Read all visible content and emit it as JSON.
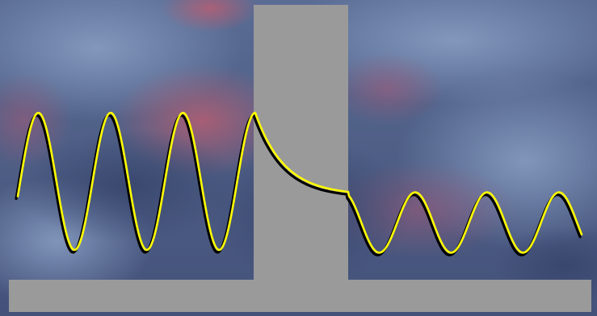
{
  "diagram": {
    "background": {
      "description_colors": {
        "base": "#50618a",
        "cloud_light": "#7f95bd",
        "cloud_dark": "#3b4a70",
        "warm_glow": "#b35a6e"
      }
    },
    "barrier": {
      "color": "#9a9a9a"
    },
    "wave": {
      "color": "#ffff00",
      "shadow_color": "#000000"
    },
    "waves": {
      "incident_amplitude_relative": 1.0,
      "transmitted_amplitude_relative": 0.55,
      "incident_cycles_shown": 3.5,
      "transmitted_cycles_shown": 3.5,
      "region_inside_barrier": "decay"
    }
  }
}
